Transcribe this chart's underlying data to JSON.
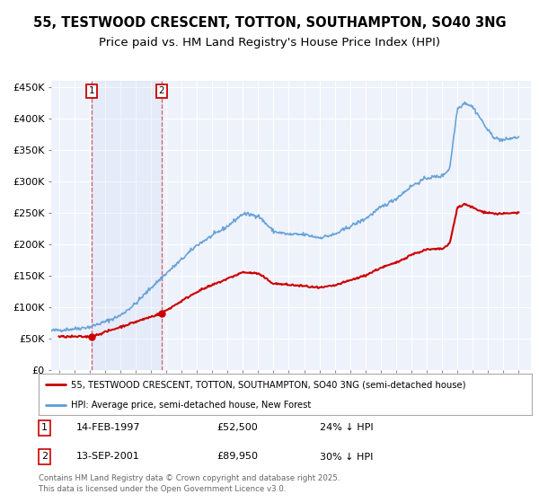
{
  "title": "55, TESTWOOD CRESCENT, TOTTON, SOUTHAMPTON, SO40 3NG",
  "subtitle": "Price paid vs. HM Land Registry's House Price Index (HPI)",
  "legend_line1": "55, TESTWOOD CRESCENT, TOTTON, SOUTHAMPTON, SO40 3NG (semi-detached house)",
  "legend_line2": "HPI: Average price, semi-detached house, New Forest",
  "annotation1_date": "14-FEB-1997",
  "annotation1_price": "£52,500",
  "annotation1_hpi": "24% ↓ HPI",
  "annotation1_year": 1997.12,
  "annotation1_value": 52500,
  "annotation2_date": "13-SEP-2001",
  "annotation2_price": "£89,950",
  "annotation2_hpi": "30% ↓ HPI",
  "annotation2_year": 2001.71,
  "annotation2_value": 89950,
  "footer": "Contains HM Land Registry data © Crown copyright and database right 2025.\nThis data is licensed under the Open Government Licence v3.0.",
  "ylim": [
    0,
    460000
  ],
  "xlim_start": 1994.5,
  "xlim_end": 2025.8,
  "background_color": "#eef2fb",
  "red_line_color": "#cc0000",
  "blue_line_color": "#5b9bd5",
  "grid_color": "#ffffff",
  "title_fontsize": 10.5,
  "subtitle_fontsize": 9.5,
  "hpi_anchors_x": [
    1994.5,
    1995,
    1996,
    1997,
    1998,
    1999,
    2000,
    2001,
    2002,
    2003,
    2004,
    2005,
    2006,
    2007,
    2008,
    2009,
    2010,
    2011,
    2012,
    2013,
    2014,
    2015,
    2016,
    2017,
    2018,
    2019,
    2020,
    2020.5,
    2021.0,
    2021.5,
    2022.0,
    2022.5,
    2023.0,
    2023.5,
    2024.0,
    2024.5,
    2025.0
  ],
  "hpi_anchors_y": [
    62000,
    63000,
    65000,
    68000,
    76000,
    86000,
    105000,
    130000,
    153000,
    175000,
    198000,
    213000,
    228000,
    248000,
    245000,
    220000,
    215000,
    215000,
    210000,
    215000,
    228000,
    240000,
    258000,
    272000,
    292000,
    305000,
    308000,
    320000,
    415000,
    425000,
    418000,
    400000,
    380000,
    368000,
    365000,
    368000,
    370000
  ],
  "prop_anchors_x": [
    1995,
    1997.12,
    2001.71,
    2004,
    2007,
    2008,
    2009,
    2010,
    2011,
    2012,
    2013,
    2014,
    2015,
    2016,
    2017,
    2018,
    2019,
    2020,
    2020.5,
    2021.0,
    2021.5,
    2022.0,
    2022.5,
    2023.0,
    2023.5,
    2024.0,
    2025.0
  ],
  "prop_anchors_y": [
    52500,
    52500,
    89950,
    124000,
    155000,
    153000,
    137000,
    135000,
    133000,
    130000,
    134000,
    142000,
    150000,
    162000,
    170000,
    183000,
    191000,
    192000,
    200000,
    258000,
    263000,
    258000,
    252000,
    250000,
    248000,
    248000,
    250000
  ]
}
